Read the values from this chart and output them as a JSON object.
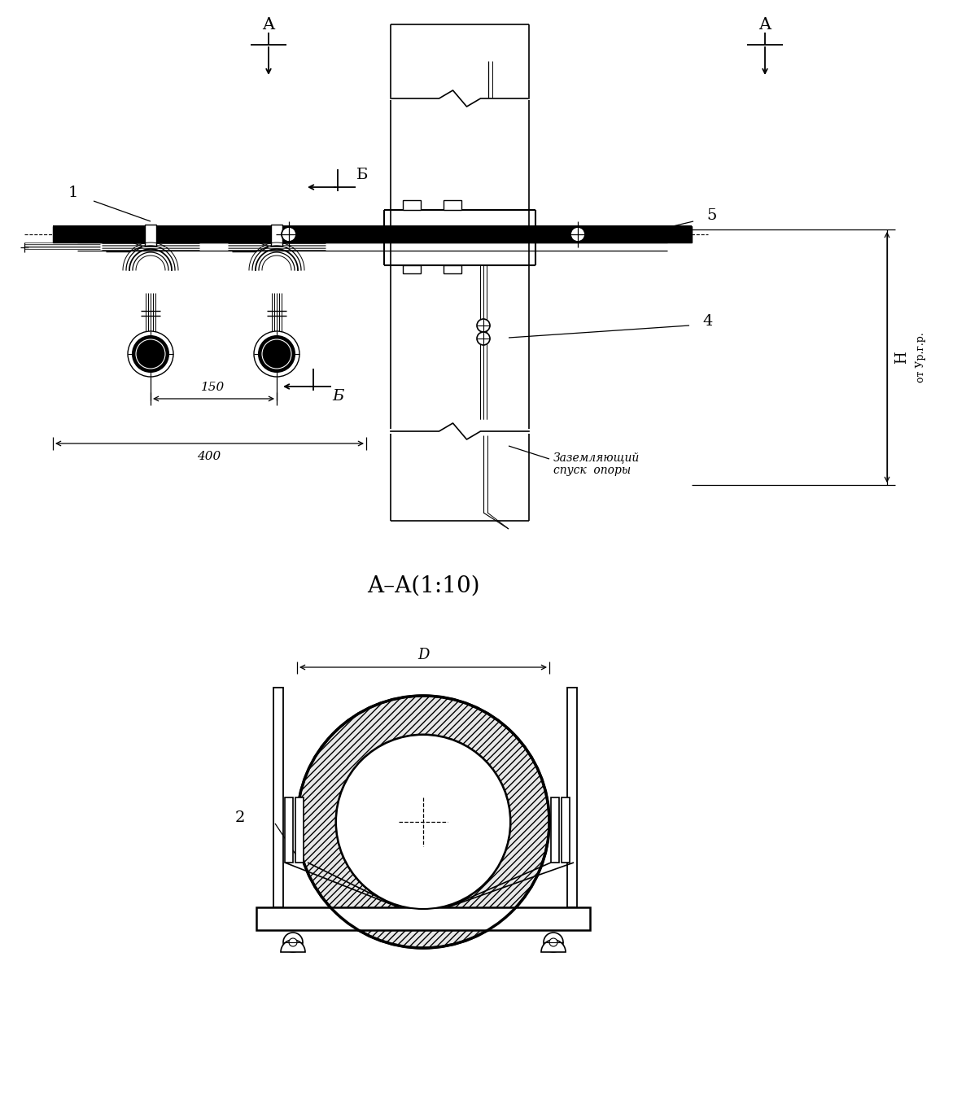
{
  "bg": "white",
  "lc": "black",
  "label_A": "A",
  "label_B": "Б",
  "label_1": "1",
  "label_2": "2",
  "label_4": "4",
  "label_5": "5",
  "label_150": "150",
  "label_400": "400",
  "label_D": "D",
  "label_H": "H",
  "label_urzgr": "от Ур.г.р.",
  "label_grounding1": "Заземляющий",
  "label_grounding2": "спуск  опоры",
  "label_section": "A–A(1:10)"
}
